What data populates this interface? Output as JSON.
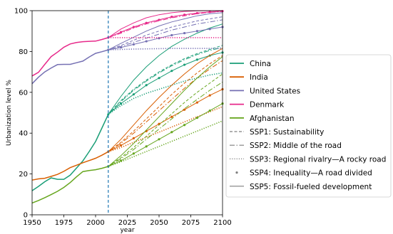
{
  "chart_data": {
    "type": "line",
    "xlabel": "year",
    "ylabel": "Urbanization level %",
    "xlim": [
      1950,
      2100
    ],
    "ylim": [
      0,
      100
    ],
    "xticks": [
      1950,
      1975,
      2000,
      2025,
      2050,
      2075,
      2100
    ],
    "yticks": [
      0,
      20,
      40,
      60,
      80,
      100
    ],
    "vline_x": 2010,
    "vline_color": "#1f77b4",
    "legend_position": "right",
    "countries": [
      {
        "name": "China",
        "color": "#1a9e77",
        "historical": {
          "x": [
            1950,
            1955,
            1960,
            1965,
            1970,
            1975,
            1980,
            1985,
            1990,
            1995,
            2000,
            2005,
            2010
          ],
          "y": [
            11.8,
            13.9,
            16.2,
            18.1,
            17.4,
            17.4,
            19.4,
            22.9,
            26.4,
            31.0,
            35.9,
            42.5,
            49.2
          ]
        },
        "scenarios": {
          "SSP1": {
            "x": [
              2010,
              2020,
              2030,
              2040,
              2050,
              2060,
              2070,
              2080,
              2090,
              2100
            ],
            "y": [
              49.2,
              56,
              61.5,
              66,
              70,
              73.5,
              76.5,
              79,
              81,
              83
            ]
          },
          "SSP2": {
            "x": [
              2010,
              2020,
              2030,
              2040,
              2050,
              2060,
              2070,
              2080,
              2090,
              2100
            ],
            "y": [
              49.2,
              55.5,
              61,
              65.5,
              69.5,
              73,
              76,
              78.5,
              80.5,
              82
            ]
          },
          "SSP3": {
            "x": [
              2010,
              2020,
              2030,
              2040,
              2050,
              2060,
              2070,
              2080,
              2090,
              2100
            ],
            "y": [
              49.2,
              53.5,
              57,
              59.5,
              61.5,
              63.5,
              65.5,
              67,
              68.5,
              69.5
            ]
          },
          "SSP4": {
            "x": [
              2010,
              2020,
              2030,
              2040,
              2050,
              2060,
              2070,
              2080,
              2090,
              2100
            ],
            "y": [
              49.2,
              54.5,
              59,
              63.5,
              67,
              70.5,
              73.5,
              76,
              78,
              79.5
            ]
          },
          "SSP5": {
            "x": [
              2010,
              2020,
              2030,
              2040,
              2050,
              2060,
              2070,
              2080,
              2090,
              2100
            ],
            "y": [
              49.2,
              58,
              66,
              72.5,
              78,
              82.5,
              86,
              89,
              91.5,
              93.5
            ]
          }
        }
      },
      {
        "name": "India",
        "color": "#d95f02",
        "historical": {
          "x": [
            1950,
            1955,
            1960,
            1965,
            1970,
            1975,
            1980,
            1985,
            1990,
            1995,
            2000,
            2005,
            2010
          ],
          "y": [
            17.0,
            17.6,
            17.9,
            18.8,
            19.8,
            21.3,
            23.1,
            24.3,
            25.5,
            26.6,
            27.7,
            29.2,
            30.9
          ]
        },
        "scenarios": {
          "SSP1": {
            "x": [
              2010,
              2020,
              2030,
              2040,
              2050,
              2060,
              2070,
              2080,
              2090,
              2100
            ],
            "y": [
              30.9,
              35.5,
              41,
              47,
              53,
              59,
              64.5,
              69.5,
              74,
              78
            ]
          },
          "SSP2": {
            "x": [
              2010,
              2020,
              2030,
              2040,
              2050,
              2060,
              2070,
              2080,
              2090,
              2100
            ],
            "y": [
              30.9,
              35,
              40,
              45.5,
              51,
              56.5,
              62,
              67,
              71.5,
              75.5
            ]
          },
          "SSP3": {
            "x": [
              2010,
              2020,
              2030,
              2040,
              2050,
              2060,
              2070,
              2080,
              2090,
              2100
            ],
            "y": [
              30.9,
              33,
              35.5,
              38,
              40.5,
              43,
              45.5,
              48,
              50.5,
              53
            ]
          },
          "SSP4": {
            "x": [
              2010,
              2020,
              2030,
              2040,
              2050,
              2060,
              2070,
              2080,
              2090,
              2100
            ],
            "y": [
              30.9,
              34,
              37.5,
              41,
              44.5,
              48,
              51.5,
              55,
              58.5,
              61.5
            ]
          },
          "SSP5": {
            "x": [
              2010,
              2020,
              2030,
              2040,
              2050,
              2060,
              2070,
              2080,
              2090,
              2100
            ],
            "y": [
              30.9,
              37,
              44,
              51,
              57.5,
              63.5,
              69,
              74,
              78,
              81.5
            ]
          }
        }
      },
      {
        "name": "United States",
        "color": "#7570b3",
        "historical": {
          "x": [
            1950,
            1955,
            1960,
            1965,
            1970,
            1975,
            1980,
            1985,
            1990,
            1995,
            2000,
            2005,
            2010
          ],
          "y": [
            64.2,
            67.4,
            70.0,
            71.9,
            73.6,
            73.7,
            73.7,
            74.5,
            75.3,
            77.3,
            79.1,
            79.9,
            80.8
          ]
        },
        "scenarios": {
          "SSP1": {
            "x": [
              2010,
              2020,
              2030,
              2040,
              2050,
              2060,
              2070,
              2080,
              2090,
              2100
            ],
            "y": [
              80.8,
              83,
              85.5,
              88,
              90,
              92,
              93.5,
              95,
              96,
              97
            ]
          },
          "SSP2": {
            "x": [
              2010,
              2020,
              2030,
              2040,
              2050,
              2060,
              2070,
              2080,
              2090,
              2100
            ],
            "y": [
              80.8,
              82.5,
              84.5,
              86.5,
              88.5,
              90.5,
              92,
              93.5,
              94.5,
              95.5
            ]
          },
          "SSP3": {
            "x": [
              2010,
              2020,
              2030,
              2040,
              2050,
              2060,
              2070,
              2080,
              2090,
              2100
            ],
            "y": [
              80.8,
              81,
              81.2,
              81.3,
              81.4,
              81.5,
              81.5,
              81.5,
              81.5,
              81.5
            ]
          },
          "SSP4": {
            "x": [
              2010,
              2020,
              2030,
              2040,
              2050,
              2060,
              2070,
              2080,
              2090,
              2100
            ],
            "y": [
              80.8,
              82,
              83.5,
              85,
              86.5,
              88,
              89,
              90,
              91,
              92
            ]
          },
          "SSP5": {
            "x": [
              2010,
              2020,
              2030,
              2040,
              2050,
              2060,
              2070,
              2080,
              2090,
              2100
            ],
            "y": [
              80.8,
              84,
              87,
              90,
              92.5,
              94.5,
              96,
              97.5,
              98.5,
              99
            ]
          }
        }
      },
      {
        "name": "Denmark",
        "color": "#e7298a",
        "historical": {
          "x": [
            1950,
            1955,
            1960,
            1965,
            1970,
            1975,
            1980,
            1985,
            1990,
            1995,
            2000,
            2005,
            2010
          ],
          "y": [
            68.0,
            69.8,
            73.7,
            77.5,
            79.7,
            82.1,
            83.7,
            84.4,
            84.8,
            85.0,
            85.1,
            85.9,
            86.8
          ]
        },
        "scenarios": {
          "SSP1": {
            "x": [
              2010,
              2020,
              2030,
              2040,
              2050,
              2060,
              2070,
              2080,
              2090,
              2100
            ],
            "y": [
              86.8,
              89.5,
              92,
              94,
              95.5,
              97,
              98,
              98.8,
              99.4,
              99.8
            ]
          },
          "SSP2": {
            "x": [
              2010,
              2020,
              2030,
              2040,
              2050,
              2060,
              2070,
              2080,
              2090,
              2100
            ],
            "y": [
              86.8,
              89,
              91.5,
              93.5,
              95,
              96.5,
              97.5,
              98.5,
              99.2,
              99.6
            ]
          },
          "SSP3": {
            "x": [
              2010,
              2020,
              2030,
              2040,
              2050,
              2060,
              2070,
              2080,
              2090,
              2100
            ],
            "y": [
              86.8,
              86.8,
              86.8,
              86.8,
              86.8,
              86.8,
              86.8,
              86.8,
              86.8,
              86.8
            ]
          },
          "SSP4": {
            "x": [
              2010,
              2020,
              2030,
              2040,
              2050,
              2060,
              2070,
              2080,
              2090,
              2100
            ],
            "y": [
              86.8,
              89.5,
              92,
              94,
              95.5,
              97,
              98,
              98.8,
              99.4,
              99.8
            ]
          },
          "SSP5": {
            "x": [
              2010,
              2020,
              2030,
              2040,
              2050,
              2060,
              2070,
              2080,
              2090,
              2100
            ],
            "y": [
              86.8,
              91,
              94,
              96.5,
              98,
              99,
              99.6,
              99.9,
              100,
              100
            ]
          }
        }
      },
      {
        "name": "Afghanistan",
        "color": "#66a61e",
        "historical": {
          "x": [
            1950,
            1955,
            1960,
            1965,
            1970,
            1975,
            1980,
            1985,
            1990,
            1995,
            2000,
            2005,
            2010
          ],
          "y": [
            5.8,
            7.0,
            8.4,
            9.9,
            11.5,
            13.4,
            15.8,
            18.6,
            21.2,
            21.7,
            22.1,
            22.8,
            23.7
          ]
        },
        "scenarios": {
          "SSP1": {
            "x": [
              2010,
              2020,
              2030,
              2040,
              2050,
              2060,
              2070,
              2080,
              2090,
              2100
            ],
            "y": [
              23.7,
              28,
              33,
              38.5,
              44,
              49.5,
              55,
              60,
              64.5,
              69
            ]
          },
          "SSP2": {
            "x": [
              2010,
              2020,
              2030,
              2040,
              2050,
              2060,
              2070,
              2080,
              2090,
              2100
            ],
            "y": [
              23.7,
              27.5,
              32,
              37,
              42,
              47,
              52,
              56.5,
              61,
              65
            ]
          },
          "SSP3": {
            "x": [
              2010,
              2020,
              2030,
              2040,
              2050,
              2060,
              2070,
              2080,
              2090,
              2100
            ],
            "y": [
              23.7,
              26,
              28.5,
              31,
              33.5,
              36,
              38.5,
              41,
              43.5,
              46
            ]
          },
          "SSP4": {
            "x": [
              2010,
              2020,
              2030,
              2040,
              2050,
              2060,
              2070,
              2080,
              2090,
              2100
            ],
            "y": [
              23.7,
              26.5,
              30,
              33.5,
              37,
              40.5,
              44,
              47.5,
              51,
              54.5
            ]
          },
          "SSP5": {
            "x": [
              2010,
              2020,
              2030,
              2040,
              2050,
              2060,
              2070,
              2080,
              2090,
              2100
            ],
            "y": [
              23.7,
              29,
              35,
              41.5,
              48,
              54.5,
              61,
              67,
              72.5,
              77.5
            ]
          }
        }
      }
    ],
    "legend": {
      "countries": [
        "China",
        "India",
        "United States",
        "Denmark",
        "Afghanistan"
      ],
      "scenarios": [
        {
          "key": "SSP1",
          "label": "SSP1: Sustainability",
          "style": "dashed"
        },
        {
          "key": "SSP2",
          "label": "SSP2: Middle of the road",
          "style": "dashdot"
        },
        {
          "key": "SSP3",
          "label": "SSP3: Regional rivalry—A rocky road",
          "style": "dotted"
        },
        {
          "key": "SSP4",
          "label": "SSP4: Inequality—A road divided",
          "style": "markers"
        },
        {
          "key": "SSP5",
          "label": "SSP5: Fossil-fueled development",
          "style": "solid"
        }
      ],
      "scenario_color": "#7f7f7f"
    }
  }
}
